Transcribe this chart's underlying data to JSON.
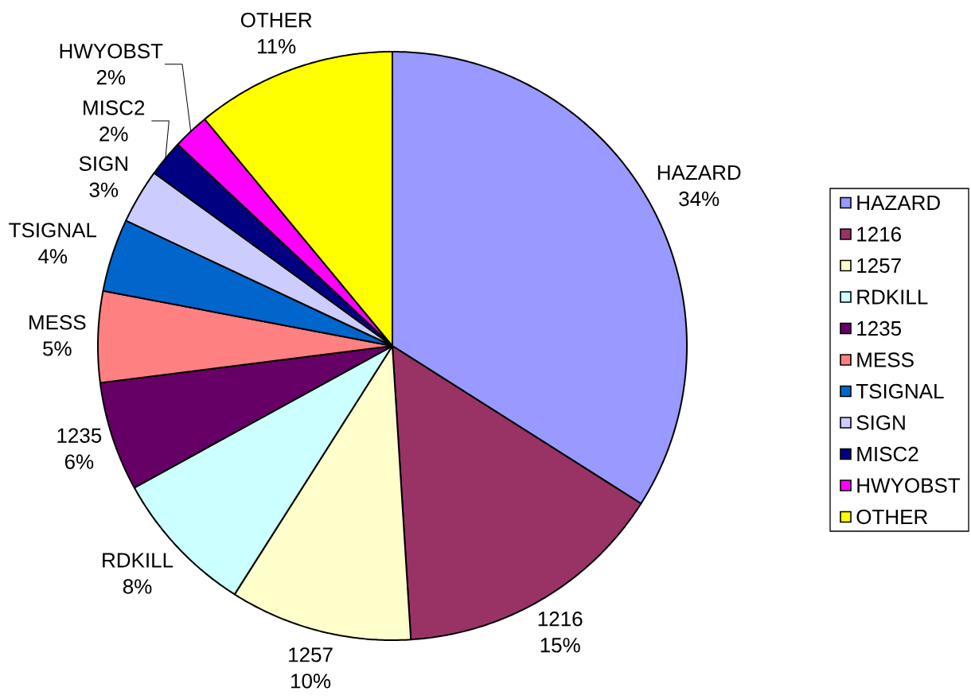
{
  "chart_data": {
    "type": "pie",
    "categories": [
      "HAZARD",
      "1216",
      "1257",
      "RDKILL",
      "1235",
      "MESS",
      "TSIGNAL",
      "SIGN",
      "MISC2",
      "HWYOBST",
      "OTHER"
    ],
    "values": [
      34,
      15,
      10,
      8,
      6,
      5,
      4,
      3,
      2,
      2,
      11
    ],
    "colors": [
      "#9999ff",
      "#993366",
      "#ffffcc",
      "#ccffff",
      "#660066",
      "#ff8080",
      "#0066cc",
      "#ccccff",
      "#000080",
      "#ff00ff",
      "#ffff00"
    ],
    "value_labels": [
      "34%",
      "15%",
      "10%",
      "8%",
      "6%",
      "5%",
      "4%",
      "3%",
      "2%",
      "2%",
      "11%"
    ],
    "legend": "right"
  }
}
